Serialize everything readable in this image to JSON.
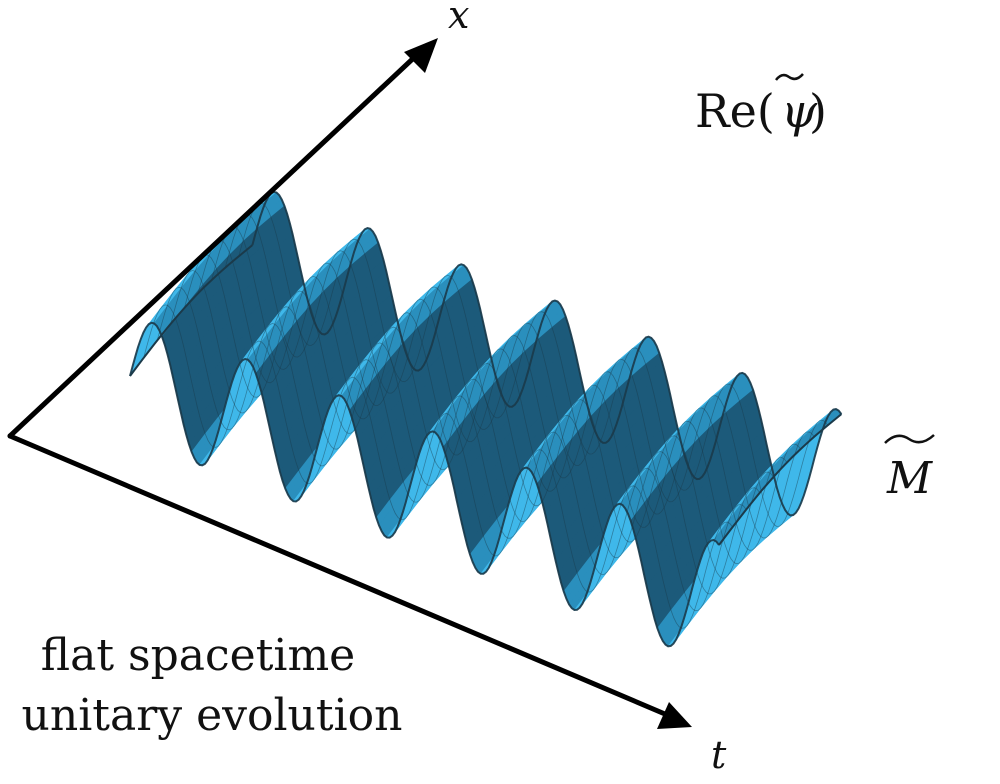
{
  "figure": {
    "axis_x_label": "x",
    "axis_t_label": "t",
    "surface_label_re": "Re(",
    "surface_label_psi": "ψ",
    "surface_label_close": ")",
    "manifold_label": "M",
    "caption_line1": "flat spacetime",
    "caption_line2": "unitary evolution"
  },
  "colors": {
    "surface_light": "#3fb8ea",
    "surface_mid": "#2a8fbd",
    "surface_dark": "#1c5a7a",
    "mesh_line": "#1b3a4a",
    "axis": "#000000"
  },
  "icons": {
    "x_axis_arrow": "arrow-icon",
    "t_axis_arrow": "arrow-icon",
    "tilde_mark": "tilde-icon"
  }
}
